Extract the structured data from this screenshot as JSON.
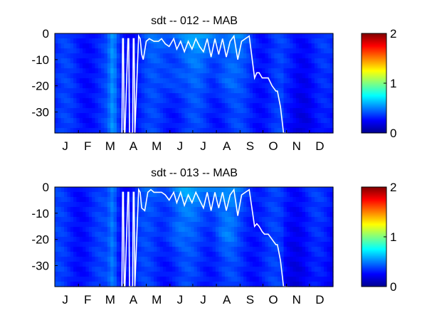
{
  "chart_data": [
    {
      "type": "heatmap",
      "title": "sdt -- 012 -- MAB",
      "xlabel": "",
      "ylabel": "",
      "x_tick_labels": [
        "J",
        "F",
        "M",
        "A",
        "M",
        "J",
        "J",
        "A",
        "S",
        "O",
        "N",
        "D"
      ],
      "y_ticks": [
        0,
        -10,
        -20,
        -30
      ],
      "ylim": [
        -38,
        0
      ],
      "xlim_days": [
        0,
        365
      ],
      "colorbar": {
        "ticks": [
          0,
          1,
          2
        ],
        "range": [
          0,
          2
        ],
        "colormap": "jet"
      },
      "contour_line": {
        "color": "#ffffff",
        "days": [
          88,
          89,
          90,
          91,
          92,
          96,
          97,
          98,
          102,
          103,
          104,
          105,
          110,
          112,
          114,
          116,
          120,
          124,
          130,
          136,
          140,
          145,
          150,
          156,
          160,
          165,
          170,
          175,
          180,
          185,
          190,
          195,
          200,
          205,
          210,
          215,
          220,
          225,
          230,
          235,
          240,
          245,
          250,
          255,
          262,
          265,
          268,
          270,
          272,
          275,
          280,
          285,
          290,
          292,
          296,
          300,
          305
        ],
        "depth": [
          -38,
          -2,
          -2,
          -38,
          -38,
          -2,
          -2,
          -38,
          -38,
          -2,
          -2,
          -38,
          -1,
          -2,
          -8,
          -10,
          -3,
          -2,
          -3,
          -3,
          -2,
          -4,
          -5,
          -2,
          -6,
          -3,
          -7,
          -3,
          -6,
          -2,
          -5,
          -7,
          -2,
          -9,
          -2,
          -8,
          -2,
          -9,
          -3,
          -1,
          -10,
          -3,
          -2,
          -1,
          -17,
          -15,
          -15,
          -16,
          -17,
          -17,
          -17,
          -20,
          -22,
          -22,
          -28,
          -38,
          -38
        ]
      }
    },
    {
      "type": "heatmap",
      "title": "sdt -- 013 -- MAB",
      "xlabel": "",
      "ylabel": "",
      "x_tick_labels": [
        "J",
        "F",
        "M",
        "A",
        "M",
        "J",
        "J",
        "A",
        "S",
        "O",
        "N",
        "D"
      ],
      "y_ticks": [
        0,
        -10,
        -20,
        -30
      ],
      "ylim": [
        -38,
        0
      ],
      "xlim_days": [
        0,
        365
      ],
      "colorbar": {
        "ticks": [
          0,
          1,
          2
        ],
        "range": [
          0,
          2
        ],
        "colormap": "jet"
      },
      "contour_line": {
        "color": "#ffffff",
        "days": [
          88,
          89,
          90,
          91,
          92,
          96,
          97,
          98,
          102,
          103,
          104,
          105,
          110,
          112,
          114,
          118,
          122,
          126,
          130,
          134,
          140,
          145,
          150,
          156,
          160,
          165,
          170,
          175,
          180,
          185,
          190,
          195,
          200,
          205,
          210,
          215,
          220,
          225,
          230,
          235,
          240,
          245,
          250,
          255,
          262,
          265,
          268,
          270,
          272,
          275,
          280,
          285,
          290,
          292,
          296,
          300,
          305
        ],
        "depth": [
          -38,
          -2,
          -2,
          -38,
          -38,
          -2,
          -2,
          -38,
          -38,
          -2,
          -2,
          -38,
          -1,
          -2,
          -8,
          -9,
          -2,
          -1,
          -2,
          -2,
          -2,
          -3,
          -5,
          -2,
          -6,
          -2,
          -7,
          -3,
          -6,
          -2,
          -5,
          -8,
          -2,
          -9,
          -2,
          -8,
          -2,
          -9,
          -3,
          -1,
          -11,
          -3,
          -2,
          -1,
          -15,
          -14,
          -15,
          -16,
          -17,
          -18,
          -18,
          -20,
          -22,
          -22,
          -28,
          -38,
          -38
        ]
      }
    }
  ]
}
